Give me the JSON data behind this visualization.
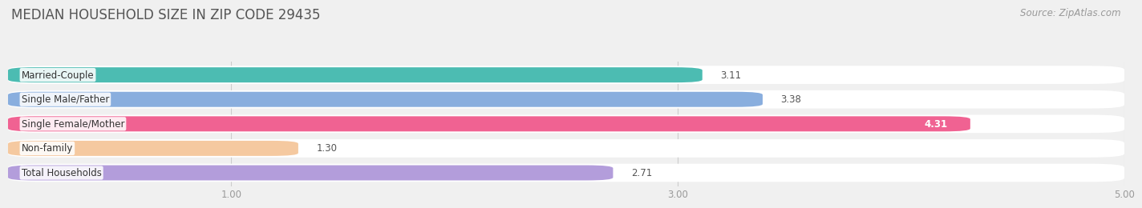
{
  "title": "MEDIAN HOUSEHOLD SIZE IN ZIP CODE 29435",
  "source": "Source: ZipAtlas.com",
  "categories": [
    "Married-Couple",
    "Single Male/Father",
    "Single Female/Mother",
    "Non-family",
    "Total Households"
  ],
  "values": [
    3.11,
    3.38,
    4.31,
    1.3,
    2.71
  ],
  "bar_colors": [
    "#4cbcb2",
    "#89aede",
    "#f06292",
    "#f5c9a0",
    "#b39ddb"
  ],
  "bar_label_colors": [
    "#444444",
    "#444444",
    "#ffffff",
    "#444444",
    "#444444"
  ],
  "xlim": [
    0,
    5.0
  ],
  "xticks": [
    1.0,
    3.0,
    5.0
  ],
  "xtick_labels": [
    "1.00",
    "3.00",
    "5.00"
  ],
  "background_color": "#f0f0f0",
  "title_fontsize": 12,
  "label_fontsize": 8.5,
  "value_fontsize": 8.5,
  "source_fontsize": 8.5
}
